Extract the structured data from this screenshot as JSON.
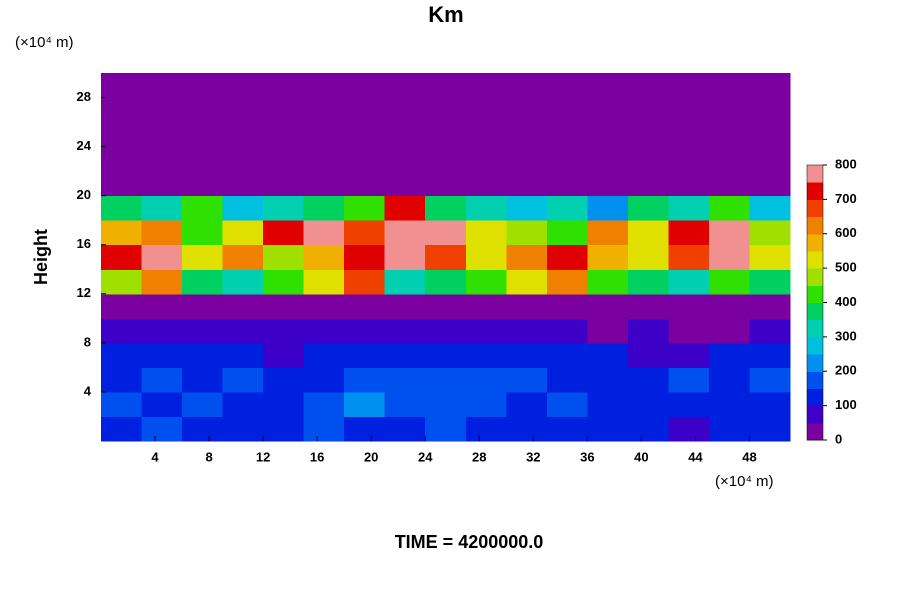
{
  "chart_data": {
    "type": "heatmap",
    "title": "Km",
    "x_unit": "(×10⁴ m)",
    "y_unit": "(×10⁴ m)",
    "ylabel": "Height",
    "footer": "TIME = 4200000.0",
    "xlim": [
      0,
      51
    ],
    "ylim": [
      0,
      30
    ],
    "xticks": [
      4,
      8,
      12,
      16,
      20,
      24,
      28,
      32,
      36,
      40,
      44,
      48
    ],
    "yticks": [
      4,
      8,
      12,
      16,
      20,
      24,
      28
    ],
    "zlim": [
      0,
      800
    ],
    "zticks": [
      0,
      100,
      200,
      300,
      400,
      500,
      600,
      700,
      800
    ],
    "colors": [
      "#7a00a0",
      "#3c00c8",
      "#0020e0",
      "#0050f0",
      "#0090f0",
      "#00c0e0",
      "#00d0b0",
      "#00d060",
      "#30e000",
      "#a0e000",
      "#e0e000",
      "#f0b000",
      "#f08000",
      "#f04000",
      "#e00000",
      "#f09090"
    ],
    "x_edges": [
      0,
      3,
      6,
      9,
      12,
      15,
      18,
      21,
      24,
      27,
      30,
      33,
      36,
      39,
      42,
      45,
      48,
      51
    ],
    "y_edges": [
      0,
      2,
      4,
      6,
      8,
      10,
      12,
      14,
      16,
      18,
      20,
      22,
      24,
      26,
      28,
      30
    ],
    "z": [
      [
        120,
        150,
        130,
        100,
        120,
        150,
        140,
        130,
        150,
        120,
        100,
        130,
        140,
        110,
        90,
        100,
        120
      ],
      [
        150,
        140,
        160,
        130,
        120,
        180,
        200,
        150,
        170,
        160,
        130,
        150,
        140,
        120,
        110,
        140,
        130
      ],
      [
        130,
        160,
        140,
        150,
        130,
        120,
        170,
        190,
        160,
        180,
        150,
        130,
        120,
        140,
        150,
        120,
        150
      ],
      [
        110,
        140,
        120,
        100,
        90,
        110,
        130,
        120,
        100,
        130,
        120,
        140,
        100,
        90,
        80,
        130,
        140
      ],
      [
        60,
        70,
        80,
        60,
        50,
        60,
        70,
        60,
        50,
        70,
        60,
        50,
        40,
        50,
        40,
        30,
        60
      ],
      [
        0,
        0,
        0,
        0,
        10,
        0,
        0,
        20,
        0,
        0,
        0,
        0,
        0,
        0,
        0,
        0,
        0
      ],
      [
        450,
        600,
        350,
        300,
        400,
        500,
        650,
        300,
        350,
        400,
        500,
        600,
        400,
        350,
        300,
        400,
        350
      ],
      [
        700,
        800,
        500,
        600,
        450,
        550,
        700,
        800,
        650,
        500,
        600,
        700,
        550,
        500,
        650,
        800,
        500
      ],
      [
        550,
        600,
        400,
        500,
        700,
        800,
        650,
        800,
        750,
        500,
        450,
        400,
        600,
        500,
        700,
        750,
        450
      ],
      [
        350,
        300,
        400,
        250,
        300,
        350,
        400,
        700,
        350,
        300,
        250,
        300,
        200,
        350,
        300,
        400,
        250
      ],
      [
        0,
        0,
        0,
        0,
        0,
        0,
        0,
        0,
        0,
        0,
        0,
        0,
        0,
        0,
        0,
        0,
        0
      ],
      [
        0,
        0,
        0,
        0,
        0,
        0,
        0,
        0,
        0,
        0,
        0,
        0,
        0,
        0,
        0,
        0,
        0
      ],
      [
        0,
        0,
        0,
        0,
        0,
        0,
        0,
        0,
        0,
        0,
        0,
        0,
        0,
        0,
        0,
        0,
        0
      ],
      [
        0,
        0,
        0,
        0,
        0,
        0,
        0,
        0,
        0,
        0,
        0,
        0,
        0,
        0,
        0,
        0,
        0
      ],
      [
        0,
        0,
        0,
        0,
        0,
        0,
        0,
        0,
        0,
        0,
        0,
        0,
        0,
        0,
        0,
        0,
        0
      ]
    ]
  }
}
